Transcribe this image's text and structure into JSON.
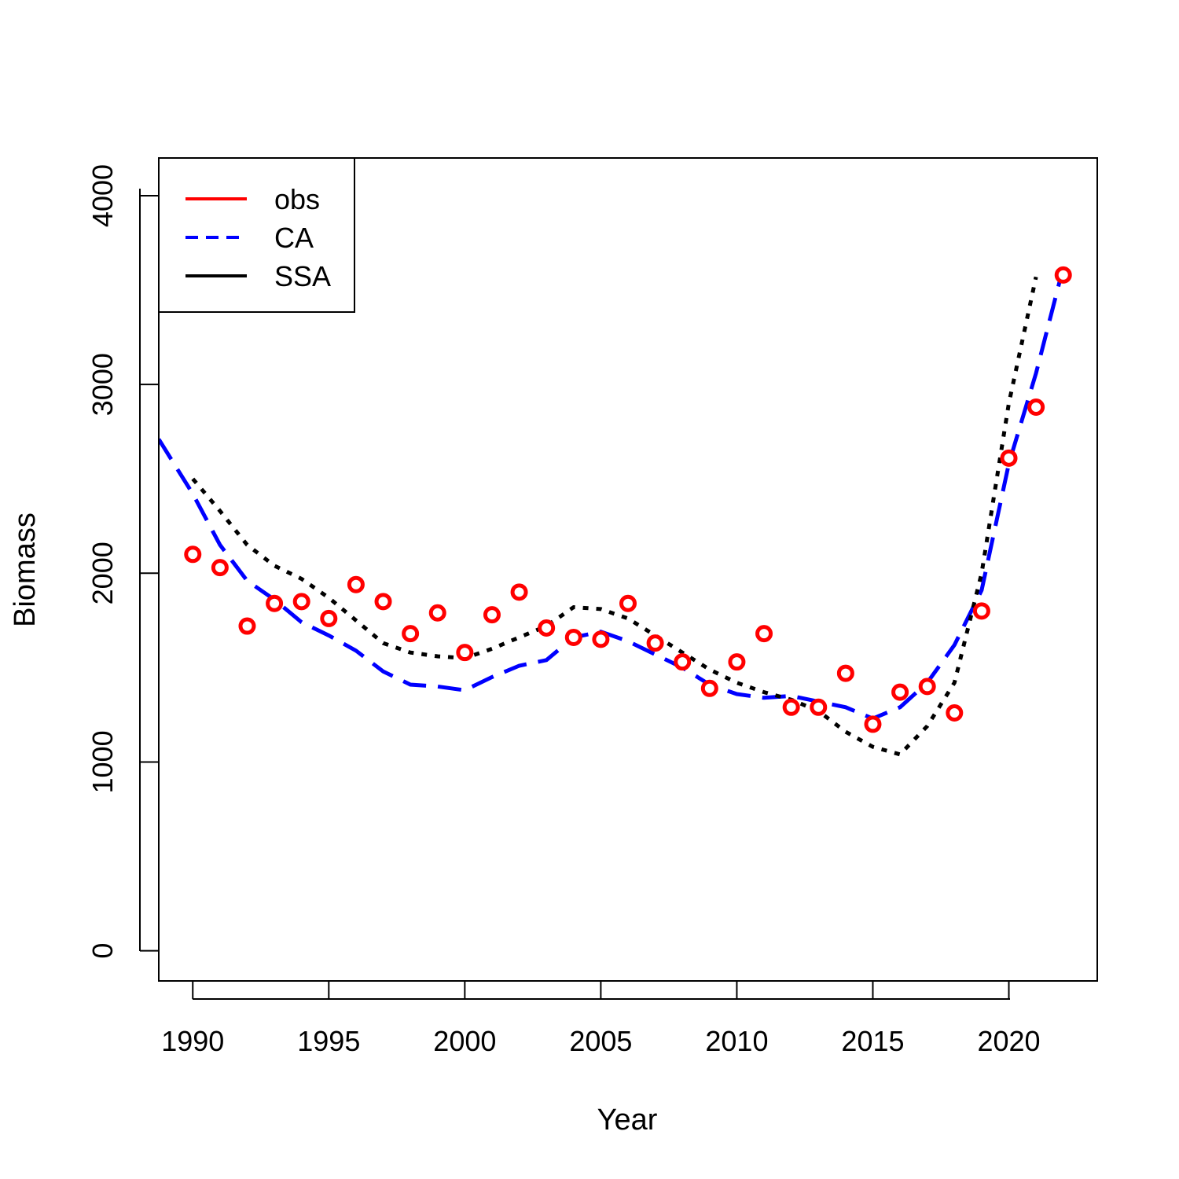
{
  "chart_data": {
    "type": "line",
    "title": "",
    "xlabel": "Year",
    "ylabel": "Biomass",
    "xlim": [
      1988.75,
      2023.25
    ],
    "ylim": [
      -160,
      4200
    ],
    "x_ticks": [
      1990,
      1995,
      2000,
      2005,
      2010,
      2015,
      2020
    ],
    "y_ticks": [
      0,
      1000,
      2000,
      3000,
      4000
    ],
    "x_tick_labels": [
      "1990",
      "1995",
      "2000",
      "2005",
      "2010",
      "2015",
      "2020"
    ],
    "y_tick_labels": [
      "0",
      "1000",
      "2000",
      "3000",
      "4000"
    ],
    "grid": false,
    "legend_position": "top-left",
    "colors": {
      "obs": "#ff0000",
      "CA": "#0000ff",
      "SSA": "#000000"
    },
    "legend": [
      {
        "label": "obs",
        "color": "#ff0000",
        "dash": "solid"
      },
      {
        "label": "CA",
        "color": "#0000ff",
        "dash": "dashed"
      },
      {
        "label": "SSA",
        "color": "#000000",
        "dash": "solid"
      }
    ],
    "obs": {
      "name": "obs",
      "style": "points",
      "x": [
        1990,
        1991,
        1992,
        1993,
        1994,
        1995,
        1996,
        1997,
        1998,
        1999,
        2000,
        2001,
        2002,
        2003,
        2004,
        2005,
        2006,
        2007,
        2008,
        2009,
        2010,
        2011,
        2012,
        2013,
        2014,
        2015,
        2016,
        2017,
        2018,
        2019,
        2020,
        2021,
        2022
      ],
      "values": [
        2100,
        2030,
        1720,
        1840,
        1850,
        1760,
        1940,
        1850,
        1680,
        1790,
        1580,
        1780,
        1900,
        1710,
        1660,
        1650,
        1840,
        1630,
        1530,
        1390,
        1530,
        1680,
        1290,
        1290,
        1470,
        1200,
        1370,
        1400,
        1260,
        1800,
        2610,
        2880,
        3580
      ]
    },
    "series": [
      {
        "name": "CA",
        "style": "dashed",
        "x": [
          1988.75,
          1990,
          1991,
          1992,
          1993,
          1994,
          1995,
          1996,
          1997,
          1998,
          1999,
          2000,
          2001,
          2002,
          2003,
          2004,
          2005,
          2006,
          2007,
          2008,
          2009,
          2010,
          2011,
          2012,
          2013,
          2014,
          2015,
          2016,
          2017,
          2018,
          2019,
          2020,
          2021,
          2022
        ],
        "values": [
          2710,
          2420,
          2150,
          1960,
          1860,
          1740,
          1670,
          1590,
          1480,
          1410,
          1400,
          1380,
          1450,
          1510,
          1540,
          1660,
          1690,
          1640,
          1570,
          1500,
          1410,
          1360,
          1340,
          1350,
          1320,
          1290,
          1230,
          1290,
          1420,
          1620,
          1910,
          2580,
          3060,
          3620
        ]
      },
      {
        "name": "SSA",
        "style": "dotted",
        "x": [
          1990,
          1991,
          1992,
          1993,
          1994,
          1995,
          1996,
          1997,
          1998,
          1999,
          2000,
          2001,
          2002,
          2003,
          2004,
          2005,
          2006,
          2007,
          2008,
          2009,
          2010,
          2011,
          2012,
          2013,
          2014,
          2015,
          2016,
          2017,
          2018,
          2019,
          2020,
          2021
        ],
        "values": [
          2500,
          2330,
          2150,
          2040,
          1970,
          1870,
          1750,
          1630,
          1580,
          1560,
          1550,
          1600,
          1660,
          1720,
          1820,
          1810,
          1760,
          1670,
          1580,
          1490,
          1420,
          1370,
          1330,
          1270,
          1160,
          1080,
          1040,
          1190,
          1420,
          2000,
          2900,
          3570
        ]
      }
    ]
  }
}
